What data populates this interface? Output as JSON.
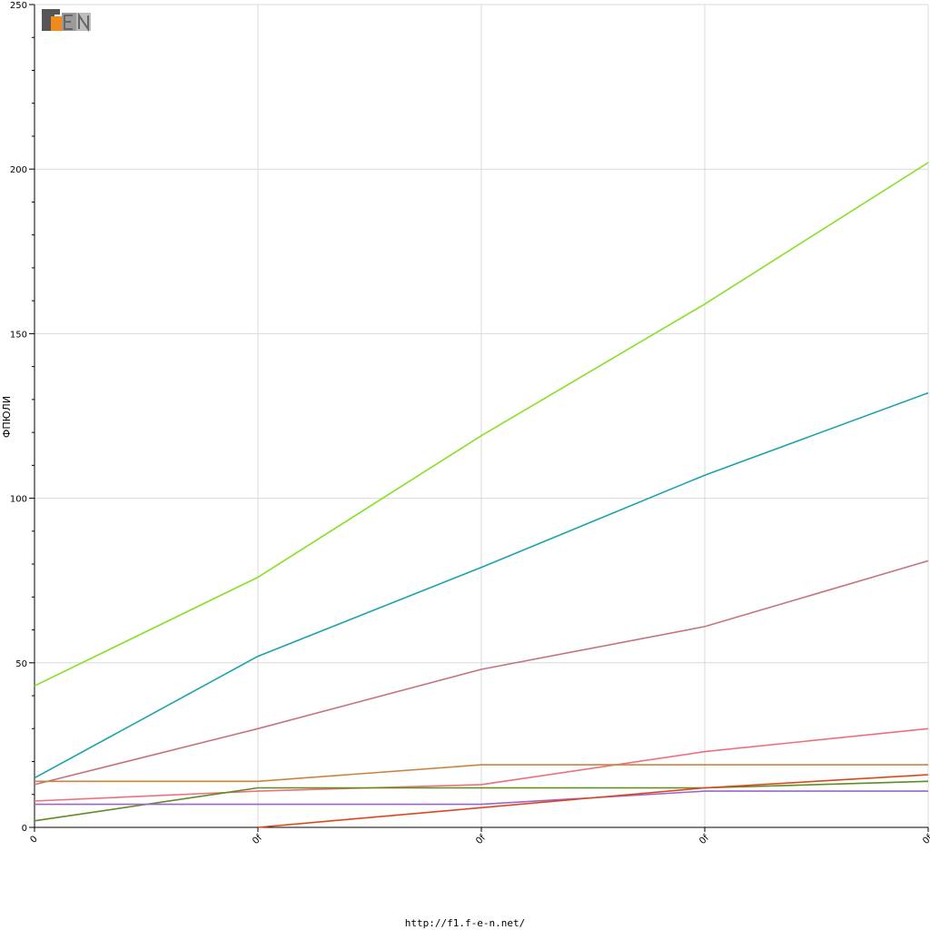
{
  "chart_data": {
    "type": "line",
    "title": "",
    "xlabel": "",
    "ylabel": "ФПЮЛИ",
    "ylim": [
      0,
      250
    ],
    "y_ticks": [
      0,
      50,
      100,
      150,
      200,
      250
    ],
    "x_tick_labels": [
      "0",
      "0f",
      "0f",
      "0f",
      "0f"
    ],
    "x": [
      0,
      1,
      2,
      3,
      4
    ],
    "grid": true,
    "legend": "none",
    "series": [
      {
        "color": "#88e025",
        "values": [
          43,
          76,
          119,
          159,
          202
        ]
      },
      {
        "color": "#1aa3a8",
        "values": [
          15,
          52,
          79,
          107,
          132
        ]
      },
      {
        "color": "#c7727e",
        "values": [
          13,
          30,
          48,
          61,
          81
        ]
      },
      {
        "color": "#ee6f7b",
        "values": [
          8,
          11,
          13,
          23,
          30
        ]
      },
      {
        "color": "#c98341",
        "values": [
          14,
          14,
          19,
          19,
          19
        ]
      },
      {
        "color": "#5f8c1f",
        "values": [
          2,
          12,
          12,
          12,
          14
        ]
      },
      {
        "color": "#9966cc",
        "values": [
          7,
          7,
          7,
          11,
          11
        ]
      },
      {
        "color": "#e0451a",
        "values": [
          null,
          0,
          6,
          12,
          16
        ]
      }
    ]
  },
  "footer": {
    "url": "http://f1.f-e-n.net/"
  },
  "logo": {
    "text": "F1EN",
    "colors": {
      "dark": "#555555",
      "accent": "#f08a1c",
      "light": "#9a9a9a"
    }
  }
}
